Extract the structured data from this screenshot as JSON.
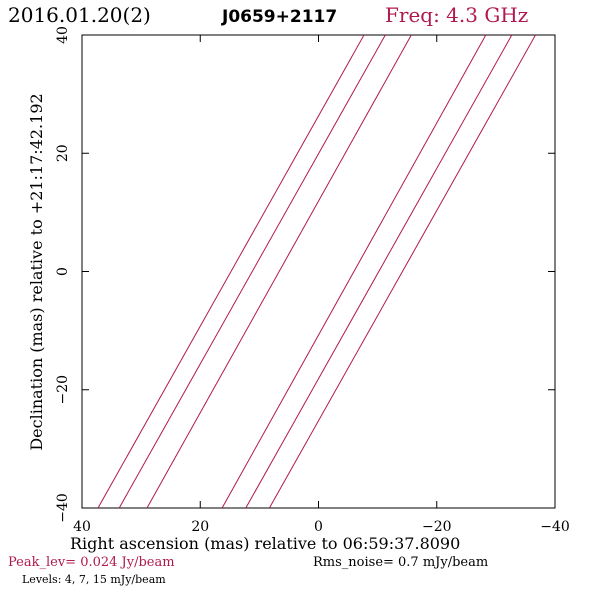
{
  "header": {
    "date": "2016.01.20(2)",
    "source": "J0659+2117",
    "freq": "Freq: 4.3 GHz"
  },
  "footer": {
    "peak": "Peak_lev=  0.024 Jy/beam",
    "rms": "Rms_noise=   0.7 mJy/beam",
    "levels": "Levels:   4,   7,  15 mJy/beam"
  },
  "colors": {
    "contour": "#b0194f",
    "axis": "#000000",
    "title_date": "#000000",
    "title_freq": "#b0194f",
    "peak_text": "#b0194f"
  },
  "chart_data": {
    "type": "contour",
    "xlabel": "Right ascension (mas) relative to 06:59:37.8090",
    "ylabel": "Declination (mas) relative to +21:17:42.192",
    "xlim": [
      40,
      -40
    ],
    "ylim": [
      -40,
      40
    ],
    "x_ticks": [
      40,
      20,
      0,
      -20,
      -40
    ],
    "y_ticks": [
      -40,
      -20,
      0,
      20,
      40
    ],
    "x_tick_labels": [
      "40",
      "20",
      "0",
      "−20",
      "−40"
    ],
    "y_tick_labels": [
      "−40",
      "−20",
      "0",
      "20",
      "40"
    ],
    "contours": [
      {
        "x": [
          37.3,
          -7.7
        ],
        "y": [
          -40,
          40
        ]
      },
      {
        "x": [
          33.7,
          -11.3
        ],
        "y": [
          -40,
          40
        ]
      },
      {
        "x": [
          29.0,
          -15.7
        ],
        "y": [
          -40,
          40
        ]
      },
      {
        "x": [
          16.3,
          -28.3
        ],
        "y": [
          -40,
          40
        ]
      },
      {
        "x": [
          12.3,
          -32.7
        ],
        "y": [
          -40,
          40
        ]
      },
      {
        "x": [
          8.3,
          -36.7
        ],
        "y": [
          -40,
          40
        ]
      }
    ]
  }
}
